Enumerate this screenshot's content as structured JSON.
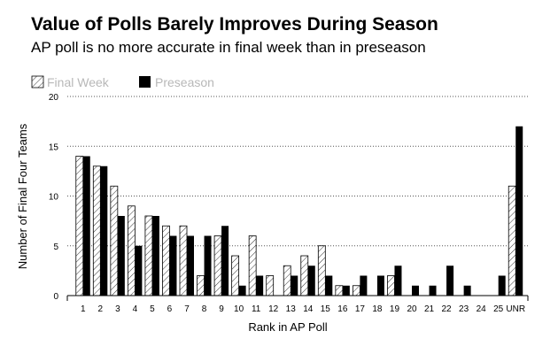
{
  "header": {
    "title": "Value of Polls Barely Improves During Season",
    "subtitle": "AP poll is no more accurate in final week than in preseason"
  },
  "chart_data": {
    "type": "bar",
    "title": "Value of Polls Barely Improves During Season",
    "subtitle": "AP poll is no more accurate in final week than in preseason",
    "xlabel": "Rank in AP Poll",
    "ylabel": "Number of Final Four Teams",
    "ylim": [
      0,
      20
    ],
    "yticks": [
      0,
      5,
      10,
      15,
      20
    ],
    "grid": "horizontal dotted",
    "legend_position": "top-left",
    "categories": [
      "1",
      "2",
      "3",
      "4",
      "5",
      "6",
      "7",
      "8",
      "9",
      "10",
      "11",
      "12",
      "13",
      "14",
      "15",
      "16",
      "17",
      "18",
      "19",
      "20",
      "21",
      "22",
      "23",
      "24",
      "25",
      "UNR"
    ],
    "series": [
      {
        "name": "Final Week",
        "style": "hatched",
        "color": "#ffffff",
        "values": [
          14,
          13,
          11,
          9,
          8,
          7,
          7,
          2,
          6,
          4,
          6,
          2,
          3,
          4,
          5,
          1,
          1,
          0,
          2,
          0,
          0,
          0,
          0,
          0,
          0,
          11
        ]
      },
      {
        "name": "Preseason",
        "style": "solid",
        "color": "#000000",
        "values": [
          14,
          13,
          8,
          5,
          8,
          6,
          6,
          6,
          7,
          1,
          2,
          0,
          2,
          3,
          2,
          1,
          2,
          2,
          3,
          1,
          1,
          3,
          1,
          0,
          2,
          17
        ]
      }
    ]
  }
}
